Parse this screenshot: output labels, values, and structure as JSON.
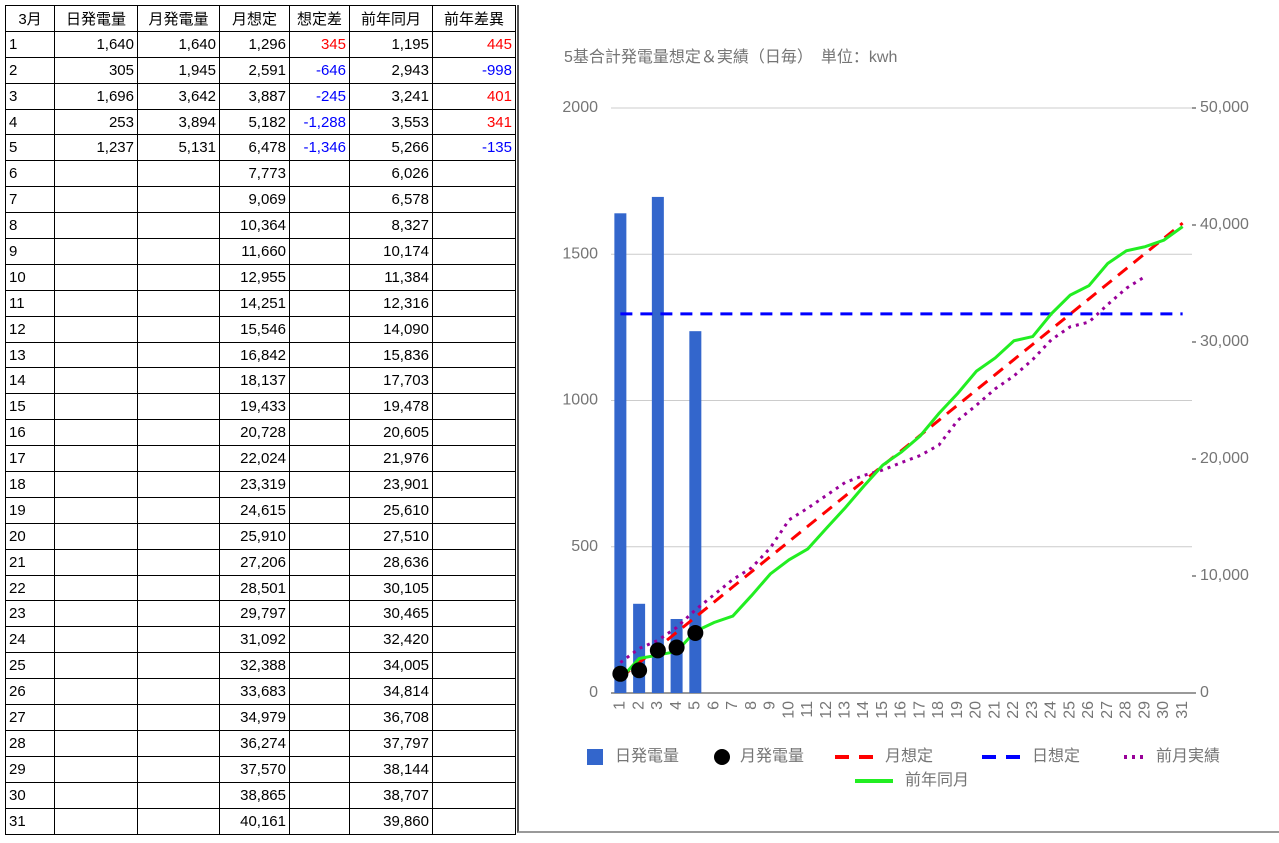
{
  "table": {
    "headers": [
      "3月",
      "日発電量",
      "月発電量",
      "月想定",
      "想定差",
      "前年同月",
      "前年差異"
    ],
    "positive_color": "#ff0000",
    "negative_color": "#0000ff",
    "colored_columns": [
      4,
      6
    ],
    "rows": [
      [
        "1",
        "1,640",
        "1,640",
        "1,296",
        "345",
        "1,195",
        "445"
      ],
      [
        "2",
        "305",
        "1,945",
        "2,591",
        "-646",
        "2,943",
        "-998"
      ],
      [
        "3",
        "1,696",
        "3,642",
        "3,887",
        "-245",
        "3,241",
        "401"
      ],
      [
        "4",
        "253",
        "3,894",
        "5,182",
        "-1,288",
        "3,553",
        "341"
      ],
      [
        "5",
        "1,237",
        "5,131",
        "6,478",
        "-1,346",
        "5,266",
        "-135"
      ],
      [
        "6",
        null,
        null,
        "7,773",
        null,
        "6,026",
        null
      ],
      [
        "7",
        null,
        null,
        "9,069",
        null,
        "6,578",
        null
      ],
      [
        "8",
        null,
        null,
        "10,364",
        null,
        "8,327",
        null
      ],
      [
        "9",
        null,
        null,
        "11,660",
        null,
        "10,174",
        null
      ],
      [
        "10",
        null,
        null,
        "12,955",
        null,
        "11,384",
        null
      ],
      [
        "11",
        null,
        null,
        "14,251",
        null,
        "12,316",
        null
      ],
      [
        "12",
        null,
        null,
        "15,546",
        null,
        "14,090",
        null
      ],
      [
        "13",
        null,
        null,
        "16,842",
        null,
        "15,836",
        null
      ],
      [
        "14",
        null,
        null,
        "18,137",
        null,
        "17,703",
        null
      ],
      [
        "15",
        null,
        null,
        "19,433",
        null,
        "19,478",
        null
      ],
      [
        "16",
        null,
        null,
        "20,728",
        null,
        "20,605",
        null
      ],
      [
        "17",
        null,
        null,
        "22,024",
        null,
        "21,976",
        null
      ],
      [
        "18",
        null,
        null,
        "23,319",
        null,
        "23,901",
        null
      ],
      [
        "19",
        null,
        null,
        "24,615",
        null,
        "25,610",
        null
      ],
      [
        "20",
        null,
        null,
        "25,910",
        null,
        "27,510",
        null
      ],
      [
        "21",
        null,
        null,
        "27,206",
        null,
        "28,636",
        null
      ],
      [
        "22",
        null,
        null,
        "28,501",
        null,
        "30,105",
        null
      ],
      [
        "23",
        null,
        null,
        "29,797",
        null,
        "30,465",
        null
      ],
      [
        "24",
        null,
        null,
        "31,092",
        null,
        "32,420",
        null
      ],
      [
        "25",
        null,
        null,
        "32,388",
        null,
        "34,005",
        null
      ],
      [
        "26",
        null,
        null,
        "33,683",
        null,
        "34,814",
        null
      ],
      [
        "27",
        null,
        null,
        "34,979",
        null,
        "36,708",
        null
      ],
      [
        "28",
        null,
        null,
        "36,274",
        null,
        "37,797",
        null
      ],
      [
        "29",
        null,
        null,
        "37,570",
        null,
        "38,144",
        null
      ],
      [
        "30",
        null,
        null,
        "38,865",
        null,
        "38,707",
        null
      ],
      [
        "31",
        null,
        null,
        "40,161",
        null,
        "39,860",
        null
      ]
    ]
  },
  "chart_data": {
    "type": "combo",
    "title": "5基合計発電量想定＆実績（日毎）　単位：kwh",
    "categories": [
      "1",
      "2",
      "3",
      "4",
      "5",
      "6",
      "7",
      "8",
      "9",
      "10",
      "11",
      "12",
      "13",
      "14",
      "15",
      "16",
      "17",
      "18",
      "19",
      "20",
      "21",
      "22",
      "23",
      "24",
      "25",
      "26",
      "27",
      "28",
      "29",
      "30",
      "31"
    ],
    "ylim": [
      0,
      2000
    ],
    "yticks": [
      0,
      500,
      1000,
      1500,
      2000
    ],
    "y2lim": [
      0,
      50000
    ],
    "y2ticks": [
      0,
      {
        "value": 10000,
        "label": "10,000"
      },
      {
        "value": 20000,
        "label": "20,000"
      },
      {
        "value": 30000,
        "label": "30,000"
      },
      {
        "value": 40000,
        "label": "40,000"
      },
      {
        "value": 50000,
        "label": "50,000"
      }
    ],
    "grid": true,
    "legend": "bottom",
    "series": [
      {
        "name": "日発電量",
        "type": "bar",
        "color": "#3366cc",
        "values": [
          1640,
          305,
          1696,
          253,
          1237,
          null,
          null,
          null,
          null,
          null,
          null,
          null,
          null,
          null,
          null,
          null,
          null,
          null,
          null,
          null,
          null,
          null,
          null,
          null,
          null,
          null,
          null,
          null,
          null,
          null,
          null
        ]
      },
      {
        "name": "月発電量",
        "type": "scatter",
        "axis": "y2",
        "color": "#000000",
        "values": [
          1640,
          1945,
          3642,
          3894,
          5131,
          null,
          null,
          null,
          null,
          null,
          null,
          null,
          null,
          null,
          null,
          null,
          null,
          null,
          null,
          null,
          null,
          null,
          null,
          null,
          null,
          null,
          null,
          null,
          null,
          null,
          null
        ]
      },
      {
        "name": "月想定",
        "type": "line",
        "style": "dashed",
        "axis": "y2",
        "color": "#ff0000",
        "values": [
          1296,
          2591,
          3887,
          5182,
          6478,
          7773,
          9069,
          10364,
          11660,
          12955,
          14251,
          15546,
          16842,
          18137,
          19433,
          20728,
          22024,
          23319,
          24615,
          25910,
          27206,
          28501,
          29797,
          31092,
          32388,
          33683,
          34979,
          36274,
          37570,
          38865,
          40161
        ]
      },
      {
        "name": "日想定",
        "type": "line",
        "style": "dashed",
        "color": "#0000ff",
        "values": [
          1296,
          1296,
          1296,
          1296,
          1296,
          1296,
          1296,
          1296,
          1296,
          1296,
          1296,
          1296,
          1296,
          1296,
          1296,
          1296,
          1296,
          1296,
          1296,
          1296,
          1296,
          1296,
          1296,
          1296,
          1296,
          1296,
          1296,
          1296,
          1296,
          1296,
          1296
        ]
      },
      {
        "name": "前月実績",
        "type": "line",
        "style": "dotted",
        "axis": "y2",
        "color": "#990099",
        "values": [
          2600,
          3800,
          4500,
          5600,
          7100,
          8400,
          9700,
          10700,
          12400,
          14800,
          15800,
          16900,
          18000,
          18600,
          19060,
          19700,
          20300,
          21200,
          23300,
          24600,
          26000,
          27100,
          28500,
          30200,
          31300,
          31700,
          33200,
          34600,
          35600,
          null,
          null
        ]
      },
      {
        "name": "前年同月",
        "type": "line",
        "style": "solid",
        "axis": "y2",
        "color": "#22ee22",
        "values": [
          1195,
          2943,
          3241,
          3553,
          5266,
          6026,
          6578,
          8327,
          10174,
          11384,
          12316,
          14090,
          15836,
          17703,
          19478,
          20605,
          21976,
          23901,
          25610,
          27510,
          28636,
          30105,
          30465,
          32420,
          34005,
          34814,
          36708,
          37797,
          38144,
          38707,
          39860
        ]
      }
    ]
  }
}
